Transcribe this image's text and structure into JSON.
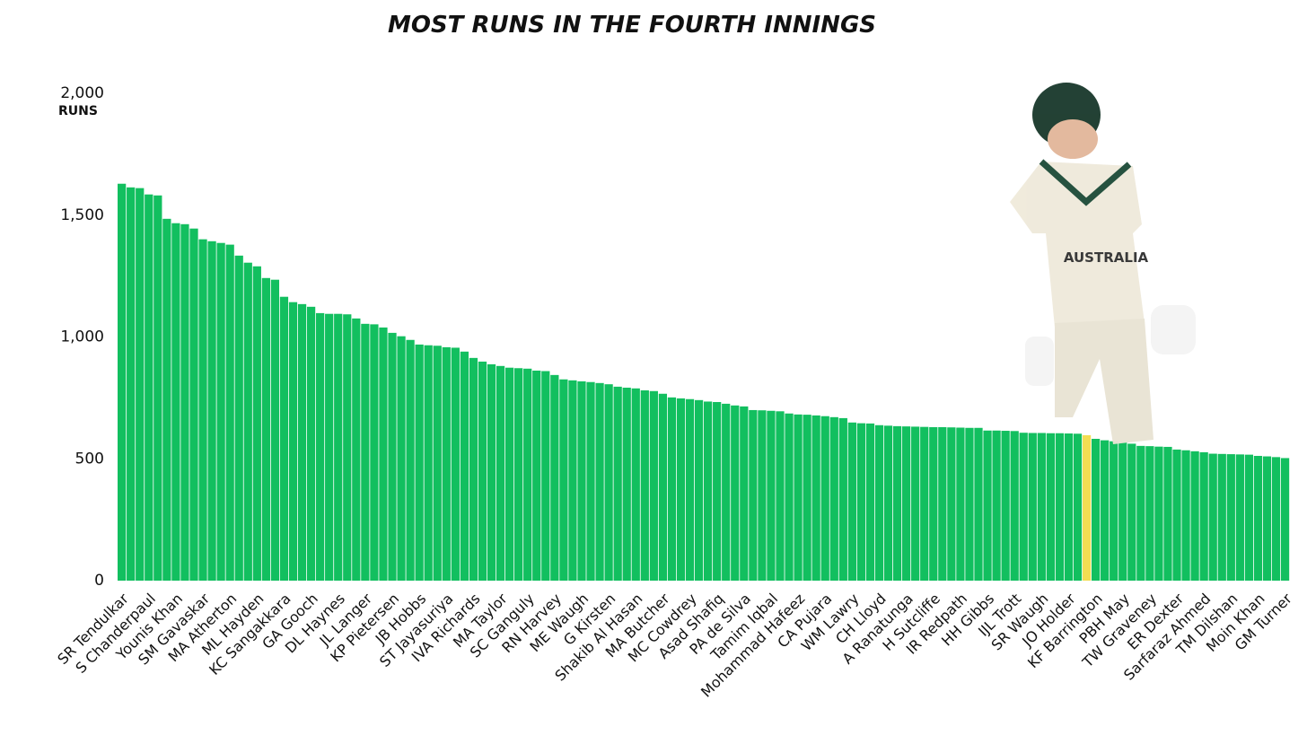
{
  "chart_data": {
    "type": "bar",
    "title": "MOST RUNS IN THE FOURTH INNINGS",
    "y_label": "RUNS",
    "categories": [
      "SR Tendulkar",
      null,
      null,
      "S Chanderpaul",
      null,
      null,
      "Younis Khan",
      null,
      null,
      "SM Gavaskar",
      null,
      null,
      "MA Atherton",
      null,
      null,
      "ML Hayden",
      null,
      null,
      "KC Sangakkara",
      null,
      null,
      "GA Gooch",
      null,
      null,
      "DL Haynes",
      null,
      null,
      "JL Langer",
      null,
      null,
      "KP Pietersen",
      null,
      null,
      "JB Hobbs",
      null,
      null,
      "ST Jayasuriya",
      null,
      null,
      "IVA Richards",
      null,
      null,
      "MA Taylor",
      null,
      null,
      "SC Ganguly",
      null,
      null,
      "RN Harvey",
      null,
      null,
      "ME Waugh",
      null,
      null,
      "G Kirsten",
      null,
      null,
      "Shakib Al Hasan",
      null,
      null,
      "MA Butcher",
      null,
      null,
      "MC Cowdrey",
      null,
      null,
      "Asad Shafiq",
      null,
      null,
      "PA de Silva",
      null,
      null,
      "Tamim Iqbal",
      null,
      null,
      "Mohammad Hafeez",
      null,
      null,
      "CA Pujara",
      null,
      null,
      "WM Lawry",
      null,
      null,
      "CH Lloyd",
      null,
      null,
      "A Ranatunga",
      null,
      null,
      "H Sutcliffe",
      null,
      null,
      "IR Redpath",
      null,
      null,
      "HH Gibbs",
      null,
      null,
      "IJL Trott",
      null,
      null,
      "SR Waugh",
      null,
      null,
      "JO Holder",
      null,
      null,
      "KF Barrington",
      null,
      null,
      "PBH May",
      null,
      null,
      "TW Graveney",
      null,
      null,
      "ER Dexter",
      null,
      null,
      "Sarfaraz Ahmed",
      null,
      null,
      "TM Dilshan",
      null,
      null,
      "Moin Khan",
      null,
      null,
      "GM Turner"
    ],
    "values": [
      1629,
      1614,
      1611,
      1585,
      1581,
      1485,
      1467,
      1463,
      1445,
      1401,
      1393,
      1386,
      1379,
      1334,
      1305,
      1290,
      1242,
      1235,
      1165,
      1143,
      1135,
      1124,
      1098,
      1095,
      1095,
      1093,
      1076,
      1054,
      1052,
      1039,
      1017,
      1003,
      988,
      969,
      966,
      964,
      958,
      956,
      940,
      914,
      899,
      888,
      881,
      874,
      872,
      870,
      862,
      860,
      844,
      826,
      822,
      818,
      815,
      811,
      806,
      796,
      792,
      789,
      781,
      778,
      767,
      752,
      748,
      745,
      741,
      735,
      733,
      726,
      719,
      715,
      700,
      699,
      697,
      695,
      686,
      682,
      681,
      678,
      675,
      671,
      667,
      649,
      646,
      645,
      638,
      636,
      634,
      633,
      632,
      631,
      630,
      630,
      629,
      628,
      627,
      627,
      616,
      616,
      615,
      614,
      607,
      606,
      606,
      605,
      605,
      604,
      603,
      597,
      582,
      576,
      572,
      568,
      562,
      553,
      552,
      550,
      549,
      538,
      535,
      531,
      527,
      521,
      520,
      519,
      518,
      517,
      512,
      510,
      507,
      503
    ],
    "colors": [
      "#12bf5f",
      "#12bf5f",
      "#12bf5f",
      "#12bf5f",
      "#12bf5f",
      "#12bf5f",
      "#12bf5f",
      "#12bf5f",
      "#12bf5f",
      "#12bf5f",
      "#12bf5f",
      "#12bf5f",
      "#12bf5f",
      "#12bf5f",
      "#12bf5f",
      "#12bf5f",
      "#12bf5f",
      "#12bf5f",
      "#12bf5f",
      "#12bf5f",
      "#12bf5f",
      "#12bf5f",
      "#12bf5f",
      "#12bf5f",
      "#12bf5f",
      "#12bf5f",
      "#12bf5f",
      "#12bf5f",
      "#12bf5f",
      "#12bf5f",
      "#12bf5f",
      "#12bf5f",
      "#12bf5f",
      "#12bf5f",
      "#12bf5f",
      "#12bf5f",
      "#12bf5f",
      "#12bf5f",
      "#12bf5f",
      "#12bf5f",
      "#12bf5f",
      "#12bf5f",
      "#12bf5f",
      "#12bf5f",
      "#12bf5f",
      "#12bf5f",
      "#12bf5f",
      "#12bf5f",
      "#12bf5f",
      "#12bf5f",
      "#12bf5f",
      "#12bf5f",
      "#12bf5f",
      "#12bf5f",
      "#12bf5f",
      "#12bf5f",
      "#12bf5f",
      "#12bf5f",
      "#12bf5f",
      "#12bf5f",
      "#12bf5f",
      "#12bf5f",
      "#12bf5f",
      "#12bf5f",
      "#12bf5f",
      "#12bf5f",
      "#12bf5f",
      "#12bf5f",
      "#12bf5f",
      "#12bf5f",
      "#12bf5f",
      "#12bf5f",
      "#12bf5f",
      "#12bf5f",
      "#12bf5f",
      "#12bf5f",
      "#12bf5f",
      "#12bf5f",
      "#12bf5f",
      "#12bf5f",
      "#12bf5f",
      "#12bf5f",
      "#12bf5f",
      "#12bf5f",
      "#12bf5f",
      "#12bf5f",
      "#12bf5f",
      "#12bf5f",
      "#12bf5f",
      "#12bf5f",
      "#12bf5f",
      "#12bf5f",
      "#12bf5f",
      "#12bf5f",
      "#12bf5f",
      "#12bf5f",
      "#12bf5f",
      "#12bf5f",
      "#12bf5f",
      "#12bf5f",
      "#12bf5f",
      "#12bf5f",
      "#12bf5f",
      "#12bf5f",
      "#12bf5f",
      "#12bf5f",
      "#12bf5f",
      "#f3dd52",
      "#12bf5f",
      "#12bf5f",
      "#12bf5f",
      "#12bf5f",
      "#12bf5f",
      "#12bf5f",
      "#12bf5f",
      "#12bf5f",
      "#12bf5f",
      "#12bf5f",
      "#12bf5f",
      "#12bf5f",
      "#12bf5f",
      "#12bf5f",
      "#12bf5f",
      "#12bf5f",
      "#12bf5f",
      "#12bf5f",
      "#12bf5f",
      "#12bf5f",
      "#12bf5f",
      "#12bf5f"
    ],
    "ylim": [
      0,
      2000
    ],
    "yticks": [
      0,
      500,
      {
        "value": 1000,
        "label": "1,000"
      },
      {
        "value": 1500,
        "label": "1,500"
      },
      {
        "value": 2000,
        "label": "2,000"
      }
    ],
    "grid": false
  }
}
